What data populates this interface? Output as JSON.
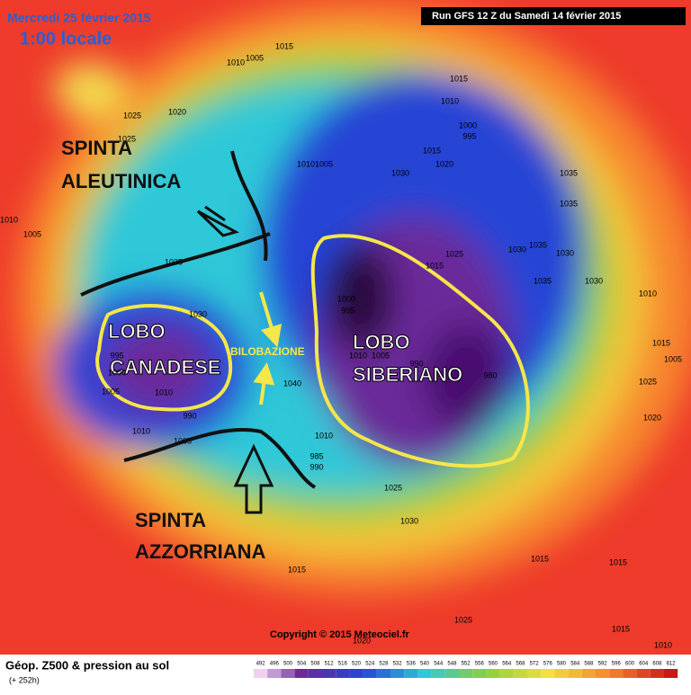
{
  "header": {
    "date": "Mercredi 25 février 2015",
    "time": "1:00 locale",
    "run": "Run GFS 12 Z du Samedi 14 février 2015"
  },
  "annotations": {
    "aleutinica_1": "SPINTA",
    "aleutinica_2": "ALEUTINICA",
    "canadese_1": "LOBO",
    "canadese_2": "CANADESE",
    "bilobazione": "BILOBAZIONE",
    "siberiano_1": "LOBO",
    "siberiano_2": "SIBERIANO",
    "azzorriana_1": "SPINTA",
    "azzorriana_2": "AZZORRIANA"
  },
  "pressure_labels": [
    "1015",
    "1005",
    "1010",
    "1025",
    "1020",
    "1025",
    "1010",
    "1005",
    "1015",
    "1010",
    "1000",
    "995",
    "1015",
    "1020",
    "1010",
    "1005",
    "1030",
    "1035",
    "1035",
    "1030",
    "1035",
    "1030",
    "1035",
    "1030",
    "1025",
    "1015",
    "1035",
    "1030",
    "1000",
    "995",
    "1010",
    "1005",
    "990",
    "980",
    "1000",
    "995",
    "1005",
    "1010",
    "1040",
    "1010",
    "1005",
    "990",
    "1010",
    "985",
    "990",
    "1025",
    "1030",
    "1015",
    "1015",
    "1015",
    "1025",
    "1020",
    "1015",
    "1010",
    "1020",
    "1015",
    "1005",
    "1010",
    "1025"
  ],
  "copyright": "Copyright © 2015 Meteociel.fr",
  "legend": {
    "title": "Géop. Z500 & pression au sol",
    "lead": "(+ 252h)",
    "scale": [
      492,
      496,
      500,
      504,
      508,
      512,
      516,
      520,
      524,
      528,
      532,
      536,
      540,
      544,
      548,
      552,
      556,
      560,
      564,
      568,
      572,
      576,
      580,
      584,
      588,
      592,
      596,
      600,
      604,
      608,
      612
    ]
  }
}
